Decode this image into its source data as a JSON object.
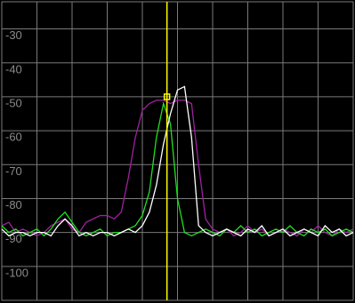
{
  "chart_data": {
    "type": "line",
    "x": [
      0,
      2,
      4,
      6,
      8,
      10,
      12,
      14,
      16,
      18,
      20,
      22,
      24,
      26,
      28,
      30,
      32,
      34,
      36,
      38,
      40,
      42,
      44,
      46,
      48,
      50,
      52,
      54,
      56,
      58,
      60,
      62,
      64,
      66,
      68,
      70,
      72,
      74,
      76,
      78,
      80,
      82,
      84,
      86,
      88,
      90,
      92,
      94,
      96,
      98,
      100
    ],
    "series": [
      {
        "color": "#a020a0",
        "values": [
          -88,
          -87,
          -90,
          -89,
          -90,
          -91,
          -90,
          -88,
          -87,
          -86,
          -89,
          -90,
          -87,
          -86,
          -85,
          -85,
          -86,
          -84,
          -74,
          -62,
          -54,
          -52,
          -51,
          -51,
          -52,
          -51,
          -51,
          -52,
          -70,
          -86,
          -89,
          -90,
          -89,
          -91,
          -90,
          -88,
          -90,
          -89,
          -91,
          -90,
          -89,
          -90,
          -91,
          -89,
          -90,
          -88,
          -90,
          -91,
          -89,
          -90,
          -89
        ]
      },
      {
        "color": "#20e020",
        "values": [
          -88,
          -90,
          -89,
          -91,
          -90,
          -89,
          -91,
          -89,
          -86,
          -84,
          -87,
          -90,
          -91,
          -90,
          -89,
          -91,
          -90,
          -90,
          -89,
          -88,
          -85,
          -78,
          -62,
          -52,
          -58,
          -80,
          -90,
          -91,
          -90,
          -89,
          -90,
          -91,
          -89,
          -90,
          -88,
          -90,
          -89,
          -91,
          -90,
          -89,
          -90,
          -88,
          -90,
          -91,
          -89,
          -90,
          -89,
          -91,
          -90,
          -89,
          -90
        ]
      },
      {
        "color": "#ffffff",
        "values": [
          -89,
          -91,
          -90,
          -90,
          -91,
          -90,
          -90,
          -91,
          -88,
          -86,
          -88,
          -91,
          -90,
          -91,
          -90,
          -90,
          -91,
          -90,
          -89,
          -90,
          -88,
          -84,
          -76,
          -64,
          -55,
          -48,
          -47,
          -62,
          -88,
          -90,
          -91,
          -90,
          -89,
          -90,
          -91,
          -89,
          -90,
          -88,
          -91,
          -90,
          -89,
          -91,
          -90,
          -89,
          -90,
          -91,
          -88,
          -90,
          -89,
          -91,
          -90
        ]
      }
    ],
    "xlim": [
      0,
      100
    ],
    "xticks": [
      0,
      10,
      20,
      30,
      40,
      50,
      60,
      70,
      80,
      90,
      100
    ],
    "ylim": [
      -110,
      -22
    ],
    "yticks": [
      -30,
      -40,
      -50,
      -60,
      -70,
      -80,
      -90,
      -100
    ],
    "grid": true,
    "grid_color": "#7a7a7a",
    "background": "#000000",
    "marker": {
      "x": 47,
      "y": -50,
      "color": "#ffff00"
    }
  }
}
